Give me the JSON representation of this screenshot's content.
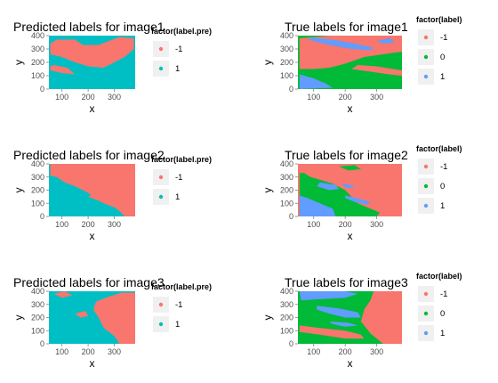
{
  "chart_data": [
    {
      "type": "heatmap",
      "title": "Predicted labels for image1",
      "xlabel": "x",
      "ylabel": "y",
      "xlim": [
        50,
        380
      ],
      "ylim": [
        0,
        400
      ],
      "xticks": [
        100,
        200,
        300
      ],
      "yticks": [
        0,
        100,
        200,
        300,
        400
      ],
      "legend": {
        "title": "factor(label.pre)",
        "placement": "right",
        "entries": [
          {
            "label": "-1",
            "color": "#F8766D"
          },
          {
            "label": "1",
            "color": "#00BFC4"
          }
        ]
      },
      "background": "#00BFC4",
      "regions": [
        {
          "label": "-1",
          "color": "#F8766D",
          "points": [
            [
              55,
              260
            ],
            [
              100,
              240
            ],
            [
              150,
              200
            ],
            [
              200,
              170
            ],
            [
              260,
              160
            ],
            [
              300,
              200
            ],
            [
              340,
              240
            ],
            [
              375,
              300
            ],
            [
              375,
              380
            ],
            [
              320,
              390
            ],
            [
              280,
              360
            ],
            [
              240,
              330
            ],
            [
              180,
              330
            ],
            [
              150,
              370
            ],
            [
              80,
              370
            ],
            [
              55,
              340
            ]
          ]
        },
        {
          "label": "-1",
          "color": "#F8766D",
          "points": [
            [
              55,
              140
            ],
            [
              100,
              120
            ],
            [
              150,
              110
            ],
            [
              120,
              160
            ],
            [
              70,
              180
            ],
            [
              55,
              170
            ]
          ]
        }
      ]
    },
    {
      "type": "heatmap",
      "title": "True labels for image1",
      "xlabel": "x",
      "ylabel": "y",
      "xlim": [
        50,
        380
      ],
      "ylim": [
        0,
        400
      ],
      "xticks": [
        100,
        200,
        300
      ],
      "yticks": [
        0,
        100,
        200,
        300,
        400
      ],
      "legend": {
        "title": "factor(label)",
        "placement": "right",
        "entries": [
          {
            "label": "-1",
            "color": "#F8766D"
          },
          {
            "label": "0",
            "color": "#00BA38"
          },
          {
            "label": "1",
            "color": "#619CFF"
          }
        ]
      },
      "background": "#00BA38",
      "regions": [
        {
          "label": "-1",
          "color": "#F8766D",
          "points": [
            [
              55,
              380
            ],
            [
              150,
              400
            ],
            [
              380,
              400
            ],
            [
              380,
              280
            ],
            [
              320,
              260
            ],
            [
              260,
              240
            ],
            [
              200,
              190
            ],
            [
              150,
              160
            ],
            [
              100,
              150
            ],
            [
              55,
              150
            ]
          ]
        },
        {
          "label": "-1",
          "color": "#F8766D",
          "points": [
            [
              220,
              150
            ],
            [
              280,
              130
            ],
            [
              340,
              110
            ],
            [
              380,
              100
            ],
            [
              380,
              140
            ],
            [
              300,
              170
            ],
            [
              240,
              180
            ]
          ]
        },
        {
          "label": "1",
          "color": "#619CFF",
          "points": [
            [
              80,
              370
            ],
            [
              150,
              330
            ],
            [
              220,
              300
            ],
            [
              280,
              290
            ],
            [
              290,
              310
            ],
            [
              230,
              340
            ],
            [
              160,
              370
            ],
            [
              100,
              385
            ]
          ]
        },
        {
          "label": "1",
          "color": "#619CFF",
          "points": [
            [
              55,
              110
            ],
            [
              100,
              80
            ],
            [
              140,
              40
            ],
            [
              160,
              10
            ],
            [
              55,
              0
            ]
          ]
        },
        {
          "label": "1",
          "color": "#619CFF",
          "points": [
            [
              300,
              360
            ],
            [
              340,
              380
            ],
            [
              360,
              350
            ],
            [
              320,
              340
            ]
          ]
        }
      ]
    },
    {
      "type": "heatmap",
      "title": "Predicted labels for image2",
      "xlabel": "x",
      "ylabel": "y",
      "xlim": [
        50,
        380
      ],
      "ylim": [
        0,
        400
      ],
      "xticks": [
        100,
        200,
        300
      ],
      "yticks": [
        0,
        100,
        200,
        300,
        400
      ],
      "legend": {
        "title": "factor(label.pre)",
        "placement": "right",
        "entries": [
          {
            "label": "-1",
            "color": "#F8766D"
          },
          {
            "label": "1",
            "color": "#00BFC4"
          }
        ]
      },
      "background": "#00BFC4",
      "regions": [
        {
          "label": "-1",
          "color": "#F8766D",
          "points": [
            [
              55,
              400
            ],
            [
              380,
              400
            ],
            [
              380,
              0
            ],
            [
              340,
              0
            ],
            [
              320,
              40
            ],
            [
              300,
              70
            ],
            [
              260,
              100
            ],
            [
              220,
              140
            ],
            [
              200,
              180
            ],
            [
              150,
              230
            ],
            [
              110,
              260
            ],
            [
              80,
              300
            ],
            [
              55,
              310
            ]
          ]
        },
        {
          "label": "-1",
          "color": "#F8766D",
          "points": [
            [
              200,
              150
            ],
            [
              240,
              120
            ],
            [
              280,
              110
            ],
            [
              300,
              130
            ],
            [
              260,
              150
            ],
            [
              220,
              170
            ]
          ]
        }
      ]
    },
    {
      "type": "heatmap",
      "title": "True labels for image2",
      "xlabel": "x",
      "ylabel": "y",
      "xlim": [
        50,
        380
      ],
      "ylim": [
        0,
        400
      ],
      "xticks": [
        100,
        200,
        300
      ],
      "yticks": [
        0,
        100,
        200,
        300,
        400
      ],
      "legend": {
        "title": "factor(label)",
        "placement": "right",
        "entries": [
          {
            "label": "-1",
            "color": "#F8766D"
          },
          {
            "label": "0",
            "color": "#00BA38"
          },
          {
            "label": "1",
            "color": "#619CFF"
          }
        ]
      },
      "background": "#F8766D",
      "regions": [
        {
          "label": "0",
          "color": "#00BA38",
          "points": [
            [
              55,
              0
            ],
            [
              300,
              0
            ],
            [
              310,
              30
            ],
            [
              280,
              60
            ],
            [
              240,
              100
            ],
            [
              220,
              150
            ],
            [
              200,
              200
            ],
            [
              160,
              250
            ],
            [
              120,
              280
            ],
            [
              90,
              300
            ],
            [
              70,
              330
            ],
            [
              55,
              330
            ]
          ]
        },
        {
          "label": "0",
          "color": "#00BA38",
          "points": [
            [
              180,
              380
            ],
            [
              230,
              390
            ],
            [
              250,
              360
            ],
            [
              210,
              350
            ]
          ]
        },
        {
          "label": "1",
          "color": "#619CFF",
          "points": [
            [
              55,
              0
            ],
            [
              170,
              0
            ],
            [
              160,
              60
            ],
            [
              120,
              100
            ],
            [
              80,
              140
            ],
            [
              55,
              160
            ]
          ]
        },
        {
          "label": "1",
          "color": "#619CFF",
          "points": [
            [
              120,
              260
            ],
            [
              170,
              240
            ],
            [
              180,
              210
            ],
            [
              150,
              200
            ],
            [
              110,
              230
            ]
          ]
        },
        {
          "label": "1",
          "color": "#619CFF",
          "points": [
            [
              200,
              160
            ],
            [
              250,
              130
            ],
            [
              280,
              110
            ],
            [
              270,
              90
            ],
            [
              230,
              110
            ],
            [
              200,
              140
            ]
          ]
        },
        {
          "label": "1",
          "color": "#619CFF",
          "points": [
            [
              190,
              250
            ],
            [
              220,
              240
            ],
            [
              230,
              220
            ],
            [
              200,
              220
            ]
          ]
        }
      ]
    },
    {
      "type": "heatmap",
      "title": "Predicted labels for image3",
      "xlabel": "x",
      "ylabel": "y",
      "xlim": [
        50,
        380
      ],
      "ylim": [
        0,
        400
      ],
      "xticks": [
        100,
        200,
        300
      ],
      "yticks": [
        0,
        100,
        200,
        300,
        400
      ],
      "legend": {
        "title": "factor(label.pre)",
        "placement": "right",
        "entries": [
          {
            "label": "-1",
            "color": "#F8766D"
          },
          {
            "label": "1",
            "color": "#00BFC4"
          }
        ]
      },
      "background": "#00BFC4",
      "regions": [
        {
          "label": "-1",
          "color": "#F8766D",
          "points": [
            [
              230,
              320
            ],
            [
              280,
              360
            ],
            [
              330,
              390
            ],
            [
              380,
              390
            ],
            [
              380,
              0
            ],
            [
              320,
              0
            ],
            [
              300,
              60
            ],
            [
              260,
              120
            ],
            [
              240,
              200
            ],
            [
              220,
              260
            ]
          ]
        },
        {
          "label": "-1",
          "color": "#F8766D",
          "points": [
            [
              70,
              380
            ],
            [
              110,
              400
            ],
            [
              140,
              370
            ],
            [
              100,
              350
            ]
          ]
        },
        {
          "label": "-1",
          "color": "#F8766D",
          "points": [
            [
              150,
              230
            ],
            [
              190,
              250
            ],
            [
              200,
              210
            ],
            [
              170,
              200
            ]
          ]
        }
      ]
    },
    {
      "type": "heatmap",
      "title": "True labels for image3",
      "xlabel": "x",
      "ylabel": "y",
      "xlim": [
        50,
        380
      ],
      "ylim": [
        0,
        400
      ],
      "xticks": [
        100,
        200,
        300
      ],
      "yticks": [
        0,
        100,
        200,
        300,
        400
      ],
      "legend": {
        "title": "factor(label)",
        "placement": "right",
        "entries": [
          {
            "label": "-1",
            "color": "#F8766D"
          },
          {
            "label": "0",
            "color": "#00BA38"
          },
          {
            "label": "1",
            "color": "#619CFF"
          }
        ]
      },
      "background": "#00BA38",
      "regions": [
        {
          "label": "-1",
          "color": "#F8766D",
          "points": [
            [
              290,
              400
            ],
            [
              380,
              400
            ],
            [
              380,
              0
            ],
            [
              320,
              0
            ],
            [
              280,
              80
            ],
            [
              250,
              170
            ],
            [
              260,
              260
            ],
            [
              280,
              330
            ]
          ]
        },
        {
          "label": "-1",
          "color": "#F8766D",
          "points": [
            [
              55,
              140
            ],
            [
              120,
              120
            ],
            [
              200,
              100
            ],
            [
              250,
              70
            ],
            [
              260,
              40
            ],
            [
              200,
              40
            ],
            [
              120,
              70
            ],
            [
              55,
              90
            ]
          ]
        },
        {
          "label": "1",
          "color": "#619CFF",
          "points": [
            [
              55,
              400
            ],
            [
              200,
              400
            ],
            [
              240,
              380
            ],
            [
              200,
              350
            ],
            [
              120,
              340
            ],
            [
              60,
              330
            ]
          ]
        },
        {
          "label": "1",
          "color": "#619CFF",
          "points": [
            [
              110,
              290
            ],
            [
              180,
              270
            ],
            [
              240,
              240
            ],
            [
              250,
              200
            ],
            [
              200,
              200
            ],
            [
              150,
              230
            ],
            [
              110,
              260
            ]
          ]
        },
        {
          "label": "1",
          "color": "#619CFF",
          "points": [
            [
              150,
              170
            ],
            [
              210,
              160
            ],
            [
              240,
              140
            ],
            [
              200,
              130
            ],
            [
              160,
              150
            ]
          ]
        }
      ]
    }
  ]
}
